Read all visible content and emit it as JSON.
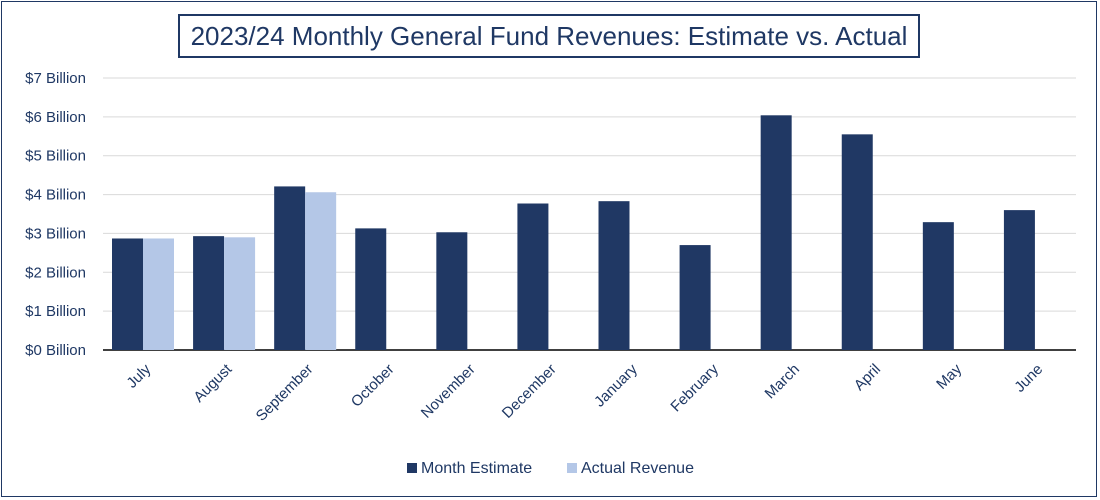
{
  "chart_data": {
    "type": "bar",
    "title": "2023/24 Monthly General Fund Revenues:  Estimate vs. Actual",
    "xlabel": "",
    "ylabel": "",
    "ylim": [
      0,
      7
    ],
    "y_ticks": [
      0,
      1,
      2,
      3,
      4,
      5,
      6,
      7
    ],
    "y_tick_labels": [
      "$0 Billion",
      "$1 Billion",
      "$2 Billion",
      "$3 Billion",
      "$4 Billion",
      "$5 Billion",
      "$6 Billion",
      "$7 Billion"
    ],
    "grid": true,
    "legend_position": "bottom",
    "categories": [
      "July",
      "August",
      "September",
      "October",
      "November",
      "December",
      "January",
      "February",
      "March",
      "April",
      "May",
      "June"
    ],
    "series": [
      {
        "name": "Month Estimate",
        "color": "#203864",
        "values": [
          2.87,
          2.93,
          4.21,
          3.13,
          3.03,
          3.77,
          3.83,
          2.7,
          6.04,
          5.55,
          3.29,
          3.6
        ]
      },
      {
        "name": "Actual Revenue",
        "color": "#b4c7e7",
        "values": [
          2.87,
          2.9,
          4.06,
          null,
          null,
          null,
          null,
          null,
          null,
          null,
          null,
          null
        ]
      }
    ]
  }
}
